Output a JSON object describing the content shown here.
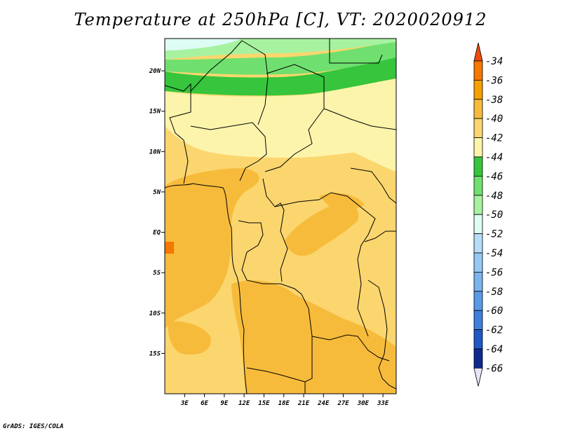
{
  "title": "Temperature at 250hPa [C], VT: 2020020912",
  "credit": "GrADS: IGES/COLA",
  "map": {
    "lat_labels": [
      "20N",
      "15N",
      "10N",
      "5N",
      "EQ",
      "5S",
      "10S",
      "15S"
    ],
    "lon_labels": [
      "3E",
      "6E",
      "9E",
      "12E",
      "15E",
      "18E",
      "21E",
      "24E",
      "27E",
      "30E",
      "33E"
    ],
    "lat_range": [
      -20,
      24
    ],
    "lon_range": [
      0,
      35
    ]
  },
  "colorbar": {
    "levels": [
      "-34",
      "-36",
      "-38",
      "-40",
      "-42",
      "-44",
      "-46",
      "-48",
      "-50",
      "-52",
      "-54",
      "-56",
      "-58",
      "-60",
      "-62",
      "-64",
      "-66"
    ],
    "colors": [
      "#f04a0f",
      "#f57800",
      "#f4a000",
      "#f7bb3c",
      "#fbd66e",
      "#fcf4ab",
      "#36c53c",
      "#6fe06f",
      "#a6f2a0",
      "#dcfcf4",
      "#b5ddf8",
      "#95c9f5",
      "#7ab4ef",
      "#5a99e8",
      "#3d7fdd",
      "#1f58c4",
      "#0d2a8e",
      "#06106a"
    ],
    "top_color": "#f04a0f",
    "bottom_color": "#e8e4fc"
  }
}
